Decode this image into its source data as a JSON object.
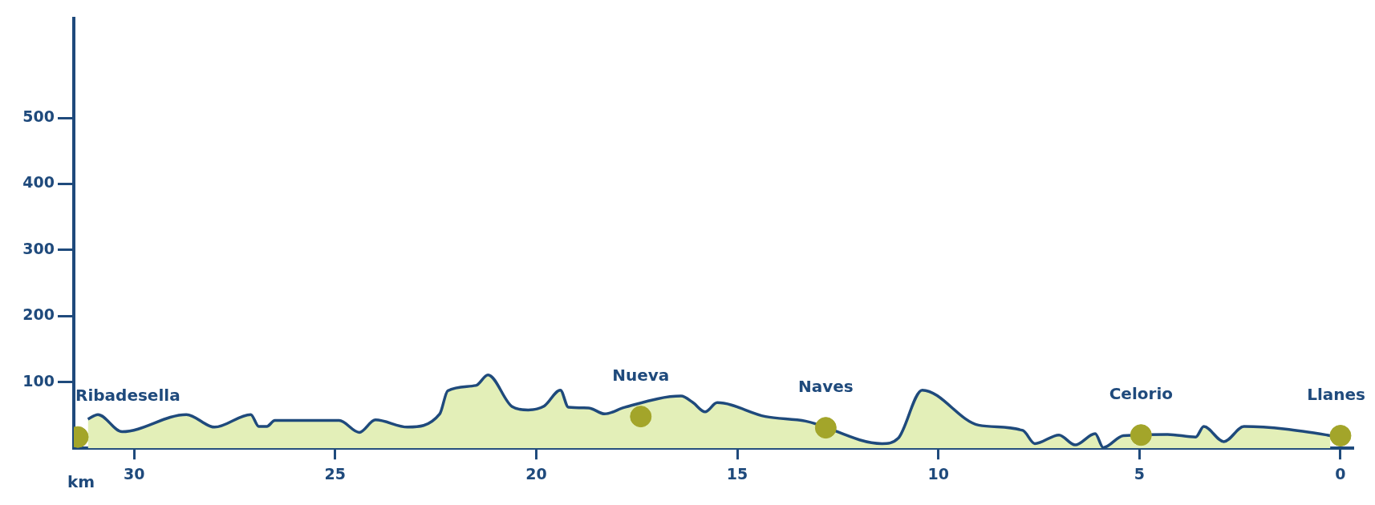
{
  "chart_data": {
    "type": "area",
    "xlabel": "km",
    "xlim": [
      31.5,
      -0.3
    ],
    "xticks": [
      30,
      25,
      20,
      15,
      10,
      5,
      0
    ],
    "ylim": [
      0,
      650
    ],
    "yticks": [
      100,
      200,
      300,
      400,
      500
    ],
    "series": [
      {
        "color": "#e3efb8",
        "x": [
          31.15,
          30.9,
          30.3,
          28.7,
          28.0,
          27.1,
          26.9,
          26.7,
          26.5,
          24.9,
          24.4,
          24.0,
          23.2,
          22.4,
          22.2,
          21.5,
          21.2,
          20.6,
          20.2,
          19.8,
          19.4,
          19.2,
          18.7,
          18.3,
          17.8,
          16.4,
          16.1,
          15.8,
          15.5,
          14.3,
          13.3,
          11.4,
          11.0,
          10.4,
          9.0,
          7.9,
          7.6,
          7.0,
          6.6,
          6.1,
          5.9,
          5.4,
          4.3,
          3.6,
          3.4,
          2.9,
          2.4,
          0.33,
          0.25
        ],
        "values": [
          44,
          51,
          25,
          51,
          32,
          51,
          33,
          33,
          42,
          42,
          24,
          43,
          32,
          52,
          87,
          95,
          111,
          63,
          58,
          64,
          88,
          62,
          61,
          52,
          62,
          79,
          69,
          55,
          69,
          48,
          41,
          7,
          15,
          88,
          35,
          27,
          7,
          20,
          5,
          22,
          1,
          19,
          21,
          17,
          33,
          10,
          33,
          20,
          19
        ]
      },
      {
        "type": "scatter",
        "color": "#a3a52a",
        "marker": "circle",
        "x": [
          31.4,
          17.4,
          12.8,
          4.96,
          0.0
        ],
        "values": [
          17,
          48,
          31,
          20,
          19
        ]
      }
    ],
    "annotations": [
      {
        "text": "Ribadesella",
        "x": 31.4,
        "y": 17
      },
      {
        "text": "Nueva",
        "x": 17.4,
        "y": 48
      },
      {
        "text": "Naves",
        "x": 12.8,
        "y": 31
      },
      {
        "text": "Celorio",
        "x": 4.96,
        "y": 20
      },
      {
        "text": "Llanes",
        "x": 0.0,
        "y": 19
      }
    ]
  }
}
